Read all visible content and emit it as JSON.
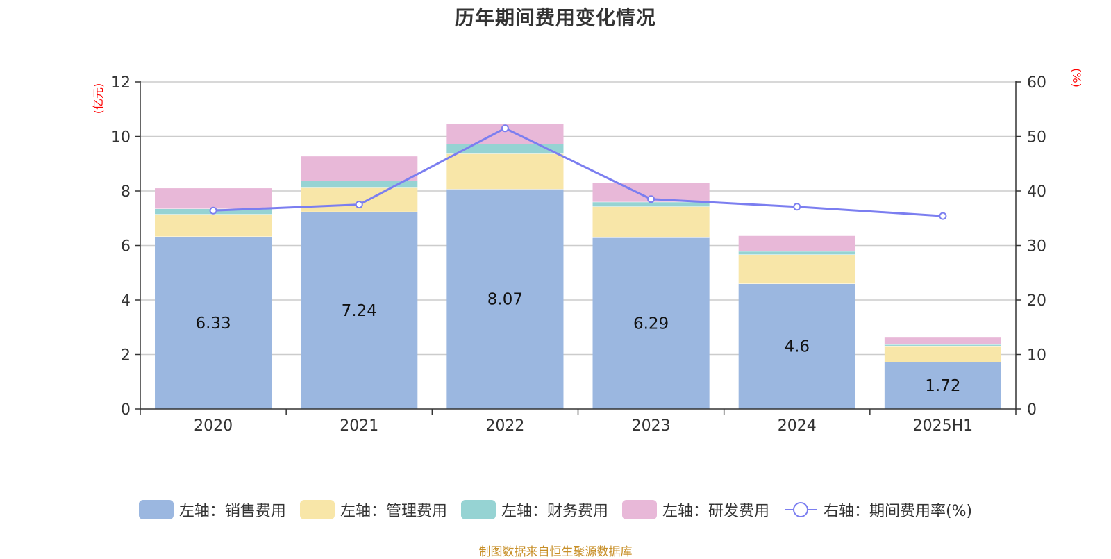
{
  "chart_data": {
    "type": "bar",
    "title": "历年期间费用变化情况",
    "categories": [
      "2020",
      "2021",
      "2022",
      "2023",
      "2024",
      "2025H1"
    ],
    "stacked": true,
    "left_axis": {
      "label": "(亿元)",
      "ylim": [
        0,
        12
      ],
      "ticks": [
        "0",
        "2",
        "4",
        "6",
        "8",
        "10",
        "12"
      ]
    },
    "right_axis": {
      "label": "(%)",
      "ylim": [
        0,
        60
      ],
      "ticks": [
        "0",
        "10",
        "20",
        "30",
        "40",
        "50",
        "60"
      ]
    },
    "series": [
      {
        "name": "左轴：销售费用",
        "type": "bar",
        "axis": "left",
        "color": "#9bb7e0",
        "values": [
          6.33,
          7.24,
          8.07,
          6.29,
          4.6,
          1.72
        ],
        "labels": [
          "6.33",
          "7.24",
          "8.07",
          "6.29",
          "4.6",
          "1.72"
        ]
      },
      {
        "name": "左轴：管理费用",
        "type": "bar",
        "axis": "left",
        "color": "#f8e6a8",
        "values": [
          0.82,
          0.88,
          1.3,
          1.14,
          1.07,
          0.6
        ]
      },
      {
        "name": "左轴：财务费用",
        "type": "bar",
        "axis": "left",
        "color": "#96d3d3",
        "values": [
          0.2,
          0.25,
          0.35,
          0.17,
          0.12,
          0.05
        ]
      },
      {
        "name": "左轴：研发费用",
        "type": "bar",
        "axis": "left",
        "color": "#e8b8d8",
        "values": [
          0.75,
          0.9,
          0.75,
          0.7,
          0.56,
          0.25
        ]
      },
      {
        "name": "右轴：期间费用率(%)",
        "type": "line",
        "axis": "right",
        "color": "#7b7ef0",
        "values": [
          36.4,
          37.5,
          51.5,
          38.5,
          37.1,
          35.4
        ]
      }
    ],
    "grid": true,
    "legend_position": "bottom",
    "axis_label_color": "#ff0000"
  },
  "source_text": "制图数据来自恒生聚源数据库"
}
